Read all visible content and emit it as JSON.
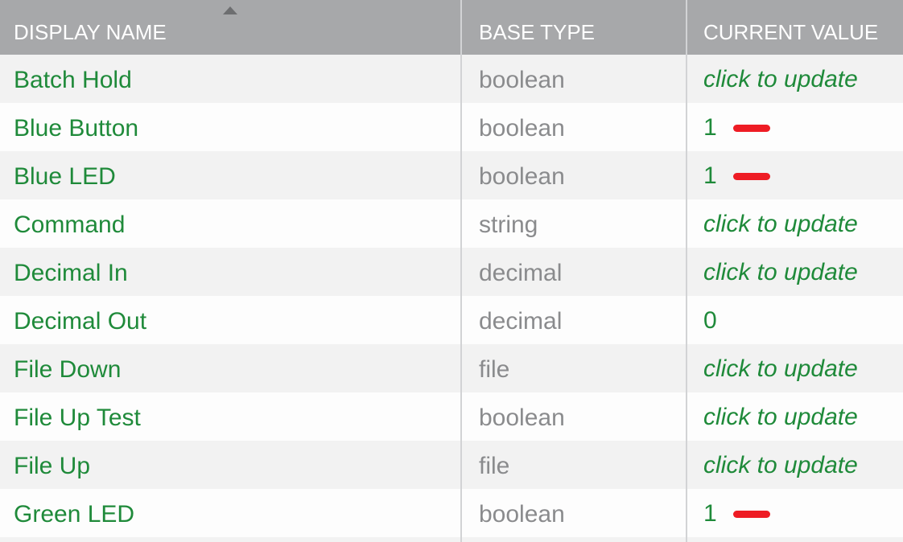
{
  "colors": {
    "header_bg": "#a7a8aa",
    "name_text": "#1f8a3a",
    "type_text": "#8a8b8d",
    "redaction_mark": "#ee1c24"
  },
  "table": {
    "columns": [
      {
        "label": "DISPLAY NAME",
        "sorted": "ascending",
        "sort_icon": "sort-up-triangle-icon"
      },
      {
        "label": "BASE TYPE"
      },
      {
        "label": "CURRENT VALUE"
      }
    ],
    "rows": [
      {
        "name": "Batch Hold",
        "type": "boolean",
        "value": "click to update",
        "is_link": true,
        "redacted_mark": false
      },
      {
        "name": "Blue Button",
        "type": "boolean",
        "value": "1",
        "is_link": false,
        "redacted_mark": true
      },
      {
        "name": "Blue LED",
        "type": "boolean",
        "value": "1",
        "is_link": false,
        "redacted_mark": true
      },
      {
        "name": "Command",
        "type": "string",
        "value": "click to update",
        "is_link": true,
        "redacted_mark": false
      },
      {
        "name": "Decimal In",
        "type": "decimal",
        "value": "click to update",
        "is_link": true,
        "redacted_mark": false
      },
      {
        "name": "Decimal Out",
        "type": "decimal",
        "value": "0",
        "is_link": false,
        "redacted_mark": false
      },
      {
        "name": "File Down",
        "type": "file",
        "value": "click to update",
        "is_link": true,
        "redacted_mark": false
      },
      {
        "name": "File Up Test",
        "type": "boolean",
        "value": "click to update",
        "is_link": true,
        "redacted_mark": false
      },
      {
        "name": "File Up",
        "type": "file",
        "value": "click to update",
        "is_link": true,
        "redacted_mark": false
      },
      {
        "name": "Green LED",
        "type": "boolean",
        "value": "1",
        "is_link": false,
        "redacted_mark": true
      }
    ]
  }
}
